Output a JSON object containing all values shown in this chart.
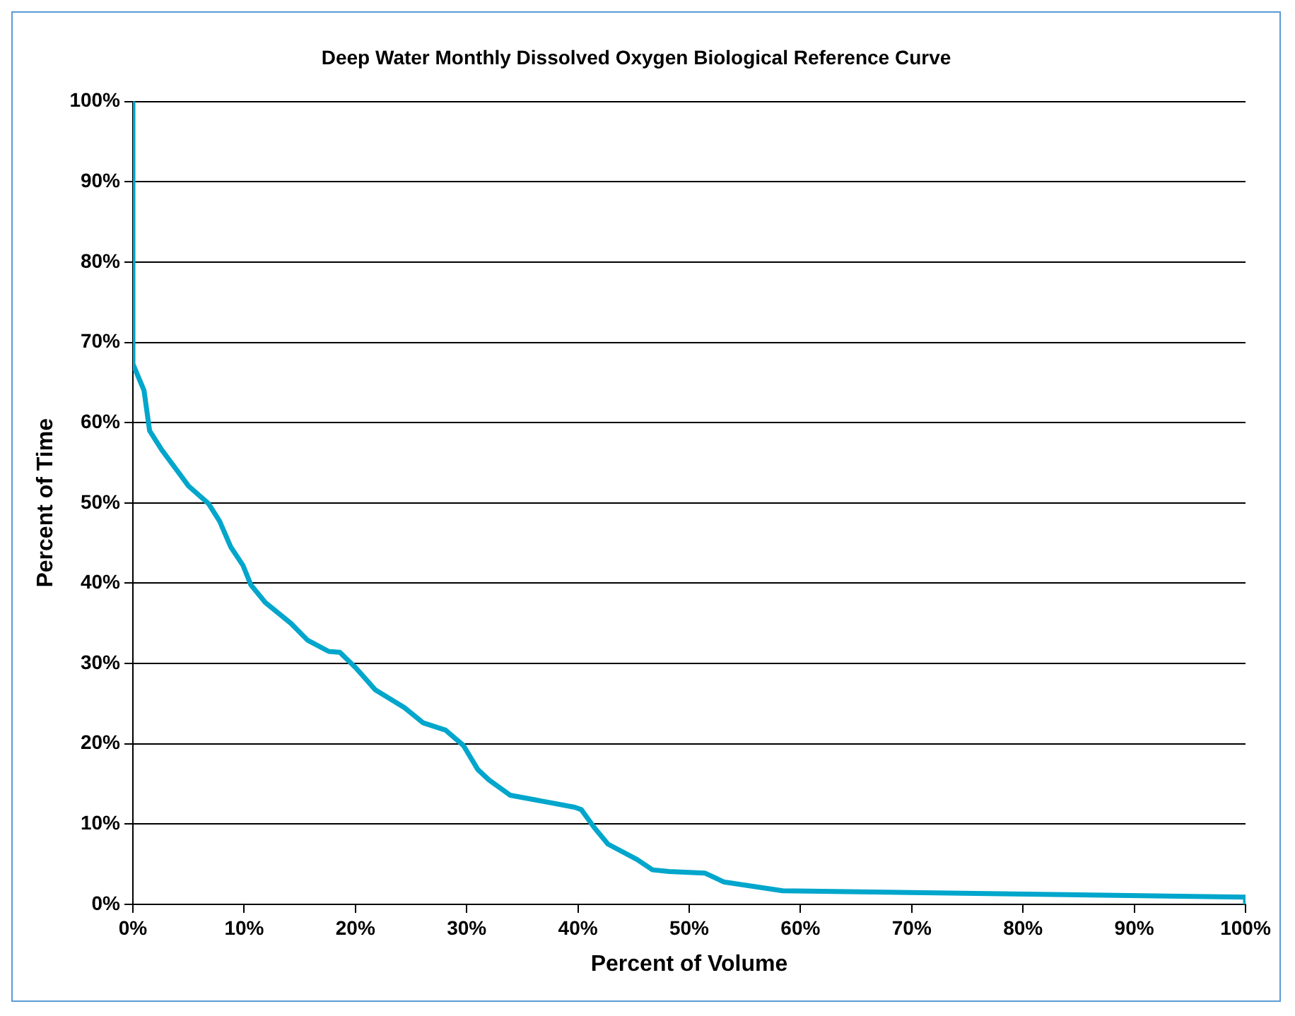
{
  "chart_data": {
    "type": "line",
    "title": "Deep Water Monthly Dissolved Oxygen Biological Reference Curve",
    "xlabel": "Percent of Volume",
    "ylabel": "Percent of Time",
    "series": [
      {
        "color": "#00a6cb",
        "x": [
          0,
          0,
          1.0,
          1.5,
          2.6,
          5.0,
          6.8,
          7.8,
          8.8,
          9.9,
          10.6,
          11.9,
          14.2,
          15.7,
          17.6,
          18.6,
          20.0,
          21.8,
          24.4,
          26.1,
          28.1,
          29.7,
          31.0,
          32.0,
          33.9,
          39.7,
          40.3,
          41.5,
          42.7,
          45.3,
          46.7,
          48.2,
          51.4,
          53.1,
          55.0,
          58.4,
          99.9,
          100,
          100
        ],
        "values": [
          100,
          67.3,
          64,
          59,
          56.6,
          52.1,
          49.9,
          47.7,
          44.5,
          42.2,
          39.8,
          37.6,
          35,
          32.9,
          31.5,
          31.4,
          29.5,
          26.7,
          24.5,
          22.6,
          21.7,
          19.8,
          16.8,
          15.5,
          13.6,
          12.1,
          11.8,
          9.5,
          7.5,
          5.6,
          4.3,
          4.1,
          3.9,
          2.8,
          2.4,
          1.7,
          0.9,
          0.9,
          0
        ]
      }
    ],
    "xlim": [
      0,
      100
    ],
    "xticks": [
      {
        "value": 0,
        "label": "0%"
      },
      {
        "value": 10,
        "label": "10%"
      },
      {
        "value": 20,
        "label": "20%"
      },
      {
        "value": 30,
        "label": "30%"
      },
      {
        "value": 40,
        "label": "40%"
      },
      {
        "value": 50,
        "label": "50%"
      },
      {
        "value": 60,
        "label": "60%"
      },
      {
        "value": 70,
        "label": "70%"
      },
      {
        "value": 80,
        "label": "80%"
      },
      {
        "value": 90,
        "label": "90%"
      },
      {
        "value": 100,
        "label": "100%"
      }
    ],
    "ylim": [
      0,
      100
    ],
    "yticks": [
      {
        "value": 0,
        "label": "0%"
      },
      {
        "value": 10,
        "label": "10%"
      },
      {
        "value": 20,
        "label": "20%"
      },
      {
        "value": 30,
        "label": "30%"
      },
      {
        "value": 40,
        "label": "40%"
      },
      {
        "value": 50,
        "label": "50%"
      },
      {
        "value": 60,
        "label": "60%"
      },
      {
        "value": 70,
        "label": "70%"
      },
      {
        "value": 80,
        "label": "80%"
      },
      {
        "value": 90,
        "label": "90%"
      },
      {
        "value": 100,
        "label": "100%"
      }
    ],
    "grid": "y",
    "marker": "none",
    "line_style": "solid"
  }
}
